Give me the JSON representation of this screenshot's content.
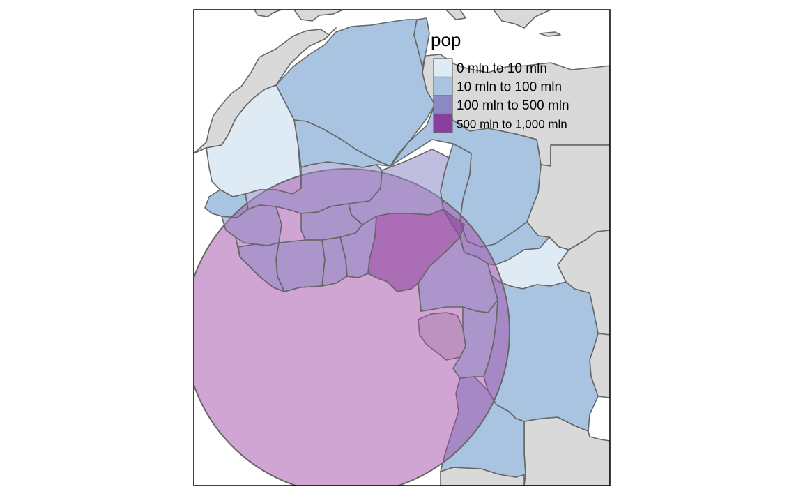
{
  "legend": {
    "title": "pop",
    "items": [
      {
        "label": "0 mln to 10 mln",
        "color": "#deebf4"
      },
      {
        "label": "10 mln to 100 mln",
        "color": "#a9c4e0"
      },
      {
        "label": "100 mln to 500 mln",
        "color": "#8c88c2"
      },
      {
        "label": "500 mln to 1,000 mln",
        "color": "#8a3f9e"
      }
    ]
  },
  "colors": {
    "background_land": "#d9d9d9",
    "border": "#666666",
    "buffer_fill": "#a44ca8",
    "frame": "#000000",
    "sea": "#ffffff"
  },
  "map": {
    "type": "choropleth",
    "variable": "pop",
    "region": "West and Central Africa",
    "overlay": "semi-transparent circular buffer"
  }
}
